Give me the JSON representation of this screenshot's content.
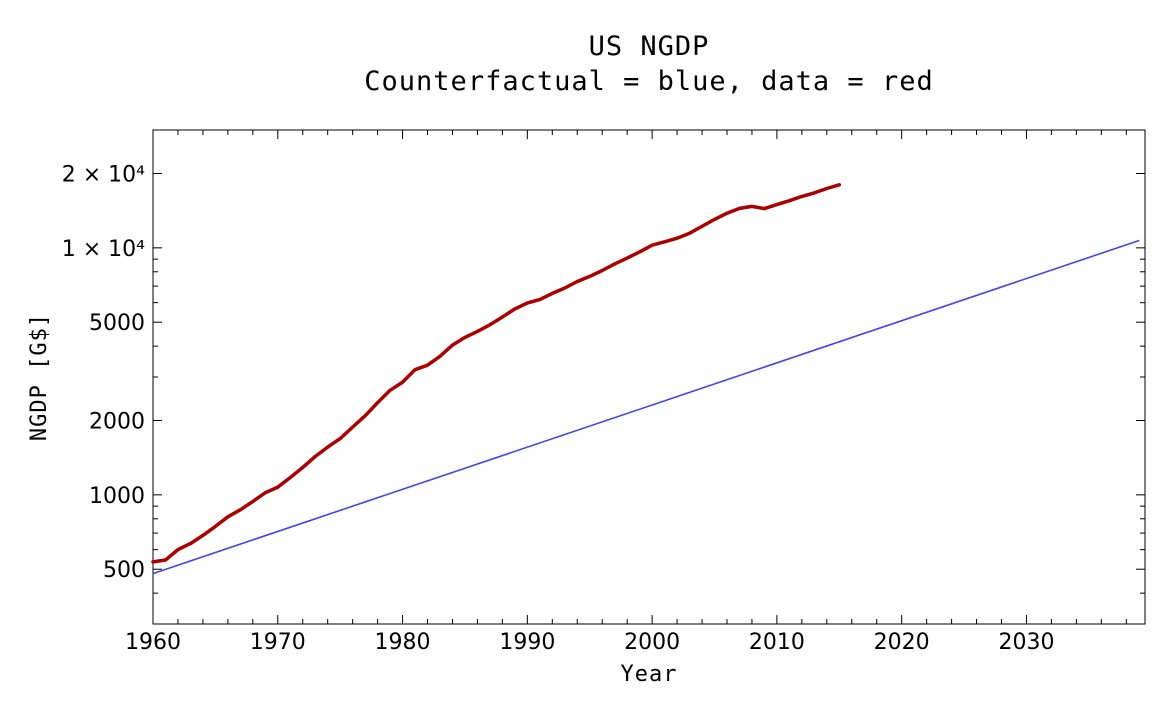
{
  "chart_data": {
    "type": "line",
    "title": "US NGDP",
    "subtitle": "Counterfactual = blue, data = red",
    "xlabel": "Year",
    "ylabel": "NGDP [G$]",
    "xlim": [
      1960,
      2039.5
    ],
    "ylim": [
      300,
      30000
    ],
    "y_scale": "log",
    "x_ticks": [
      1960,
      1970,
      1980,
      1990,
      2000,
      2010,
      2020,
      2030
    ],
    "y_ticks": [
      {
        "value": 500,
        "label": "500"
      },
      {
        "value": 1000,
        "label": "1000"
      },
      {
        "value": 2000,
        "label": "2000"
      },
      {
        "value": 5000,
        "label": "5000"
      },
      {
        "value": 10000,
        "label": "1 × 10⁴"
      },
      {
        "value": 20000,
        "label": "2 × 10⁴"
      }
    ],
    "series": [
      {
        "color": "#4444ee",
        "x": [
          1960,
          2039
        ],
        "y": [
          480,
          10700
        ]
      },
      {
        "color": "#aa0000",
        "x": [
          1960,
          1961,
          1962,
          1963,
          1964,
          1965,
          1966,
          1967,
          1968,
          1969,
          1970,
          1971,
          1972,
          1973,
          1974,
          1975,
          1976,
          1977,
          1978,
          1979,
          1980,
          1981,
          1982,
          1983,
          1984,
          1985,
          1986,
          1987,
          1988,
          1989,
          1990,
          1991,
          1992,
          1993,
          1994,
          1995,
          1996,
          1997,
          1998,
          1999,
          2000,
          2001,
          2002,
          2003,
          2004,
          2005,
          2006,
          2007,
          2008,
          2009,
          2010,
          2011,
          2012,
          2013,
          2014,
          2015
        ],
        "y": [
          535,
          545,
          600,
          635,
          685,
          745,
          815,
          870,
          940,
          1020,
          1075,
          1175,
          1290,
          1430,
          1560,
          1690,
          1880,
          2090,
          2360,
          2650,
          2860,
          3210,
          3350,
          3640,
          4040,
          4340,
          4590,
          4880,
          5250,
          5660,
          5980,
          6170,
          6540,
          6880,
          7310,
          7660,
          8100,
          8610,
          9090,
          9630,
          10250,
          10580,
          10940,
          11460,
          12210,
          13040,
          13810,
          14450,
          14710,
          14420,
          14960,
          15520,
          16160,
          16690,
          17390,
          18000
        ]
      }
    ]
  }
}
